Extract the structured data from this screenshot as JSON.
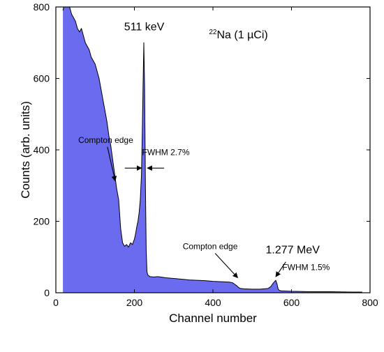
{
  "chart_data": {
    "type": "area",
    "title": "",
    "xlabel": "Channel number",
    "ylabel": "Counts (arb. units)",
    "xlim": [
      0,
      800
    ],
    "ylim": [
      0,
      800
    ],
    "x_ticks": [
      0,
      200,
      400,
      600,
      800
    ],
    "y_ticks": [
      0,
      200,
      400,
      600,
      800
    ],
    "grid": false,
    "fill_color": "#6b6bf0",
    "line_color": "#000000",
    "series": [
      {
        "x": [
          18,
          20,
          25,
          30,
          35,
          40,
          45,
          50,
          55,
          60,
          65,
          70,
          75,
          80,
          85,
          90,
          95,
          100,
          105,
          110,
          115,
          120,
          125,
          130,
          135,
          140,
          145,
          150,
          155,
          160,
          165,
          170,
          175,
          180,
          185,
          190,
          195,
          200,
          203,
          206,
          209,
          212,
          215,
          218,
          220,
          222,
          224,
          226,
          228,
          230,
          232,
          234,
          236,
          240,
          250,
          260,
          280,
          300,
          320,
          340,
          360,
          380,
          400,
          420,
          440,
          450,
          460,
          465,
          470,
          480,
          500,
          520,
          540,
          548,
          552,
          556,
          560,
          563,
          566,
          570,
          575,
          580,
          600,
          650,
          700,
          750,
          780
        ],
        "y": [
          790,
          800,
          800,
          800,
          800,
          780,
          770,
          760,
          740,
          730,
          740,
          720,
          700,
          690,
          680,
          660,
          650,
          640,
          620,
          600,
          570,
          540,
          510,
          480,
          440,
          410,
          370,
          330,
          290,
          260,
          180,
          140,
          130,
          135,
          128,
          140,
          135,
          150,
          165,
          185,
          200,
          225,
          260,
          330,
          450,
          580,
          700,
          580,
          300,
          120,
          60,
          50,
          48,
          45,
          44,
          45,
          42,
          40,
          38,
          36,
          35,
          34,
          32,
          31,
          30,
          28,
          20,
          15,
          12,
          11,
          10,
          10,
          12,
          18,
          25,
          30,
          35,
          25,
          10,
          6,
          5,
          5,
          4,
          3,
          3,
          2,
          2
        ]
      }
    ],
    "annotations": [
      {
        "text": "511 keV",
        "x": 225,
        "y": 735
      },
      {
        "text": "Na (1 µCi)",
        "superscript": "22",
        "x": 465,
        "y": 712
      },
      {
        "text": "Compton edge",
        "x": 127,
        "y": 420,
        "arrow_to": [
          151,
          313
        ]
      },
      {
        "text": "FWHM 2.7%",
        "x": 280,
        "y": 385
      },
      {
        "text": "Compton edge",
        "x": 393,
        "y": 122,
        "arrow_to": [
          463,
          42
        ]
      },
      {
        "text": "1.277 MeV",
        "x": 603,
        "y": 110
      },
      {
        "text": "FWHM 1.5%",
        "x": 637,
        "y": 63,
        "arrow_to": [
          560,
          45
        ]
      }
    ]
  }
}
